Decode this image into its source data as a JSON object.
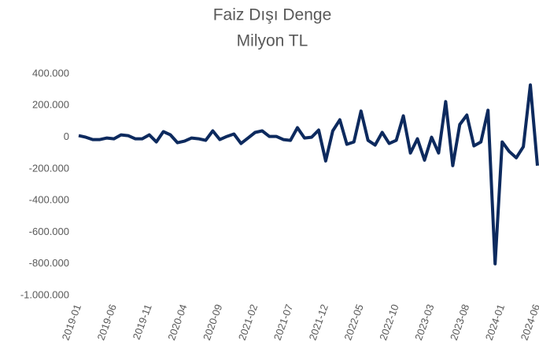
{
  "chart_data": {
    "type": "line",
    "title": "Faiz Dışı Denge",
    "subtitle": "Milyon TL",
    "categories": [
      "2019-01",
      null,
      null,
      null,
      null,
      "2019-06",
      null,
      null,
      null,
      null,
      "2019-11",
      null,
      null,
      null,
      null,
      "2020-04",
      null,
      null,
      null,
      null,
      "2020-09",
      null,
      null,
      null,
      null,
      "2021-02",
      null,
      null,
      null,
      null,
      "2021-07",
      null,
      null,
      null,
      null,
      "2021-12",
      null,
      null,
      null,
      null,
      "2022-05",
      null,
      null,
      null,
      null,
      "2022-10",
      null,
      null,
      null,
      null,
      "2023-03",
      null,
      null,
      null,
      null,
      "2023-08",
      null,
      null,
      null,
      null,
      "2024-01",
      null,
      null,
      null,
      null,
      "2024-06"
    ],
    "series": [
      {
        "name": "Faiz Dışı Denge",
        "color": "#0d2a5e",
        "values": [
          10000,
          0,
          -15000,
          -15000,
          -5000,
          -10000,
          15000,
          10000,
          -10000,
          -10000,
          15000,
          -30000,
          35000,
          15000,
          -35000,
          -25000,
          -5000,
          -10000,
          -20000,
          40000,
          -15000,
          5000,
          20000,
          -40000,
          -5000,
          30000,
          40000,
          5000,
          5000,
          -15000,
          -20000,
          60000,
          -5000,
          0,
          45000,
          -150000,
          40000,
          110000,
          -45000,
          -30000,
          165000,
          -20000,
          -50000,
          30000,
          -40000,
          -20000,
          135000,
          -100000,
          -10000,
          -145000,
          0,
          -100000,
          225000,
          -180000,
          80000,
          140000,
          -55000,
          -30000,
          170000,
          -800000,
          -30000,
          -90000,
          -130000,
          -60000,
          330000,
          -180000
        ]
      }
    ],
    "ylim": [
      -1000000,
      400000
    ],
    "yticks": [
      {
        "value": -1000000,
        "label": "-1.000.000"
      },
      {
        "value": -800000,
        "label": "-800.000"
      },
      {
        "value": -600000,
        "label": "-600.000"
      },
      {
        "value": -400000,
        "label": "-400.000"
      },
      {
        "value": -200000,
        "label": "-200.000"
      },
      0,
      {
        "value": 200000,
        "label": "200.000"
      },
      {
        "value": 400000,
        "label": "400.000"
      }
    ],
    "grid": false
  }
}
